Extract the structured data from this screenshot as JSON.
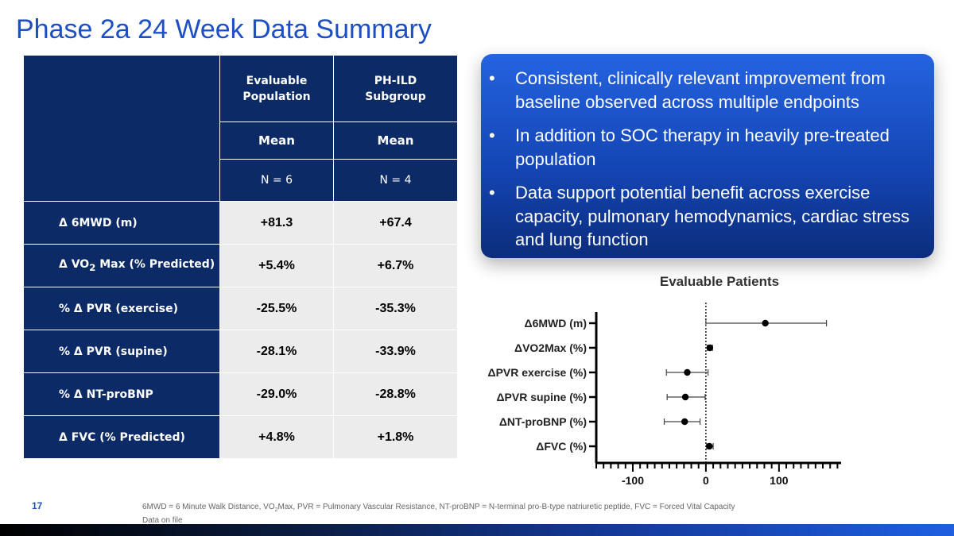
{
  "slide": {
    "title": "Phase 2a 24 Week Data Summary",
    "page_number": "17",
    "footnote_line1_a": "6MWD = 6 Minute Walk Distance, VO",
    "footnote_line1_sub": "2",
    "footnote_line1_b": "Max, PVR = Pulmonary Vascular Resistance, NT-proBNP = N-terminal pro-B-type natriuretic peptide, FVC = Forced Vital Capacity",
    "footnote_line2": "Data on file"
  },
  "table": {
    "columns": [
      {
        "line1": "Evaluable",
        "line2": "Population",
        "stat": "Mean",
        "n": "N = 6"
      },
      {
        "line1": "PH-ILD",
        "line2": "Subgroup",
        "stat": "Mean",
        "n": "N = 4"
      }
    ],
    "rows": [
      {
        "label": "Δ 6MWD (m)",
        "values": [
          "+81.3",
          "+67.4"
        ]
      },
      {
        "label_a": "Δ VO",
        "label_sub": "2",
        "label_b": " Max  (% Predicted)",
        "values": [
          "+5.4%",
          "+6.7%"
        ]
      },
      {
        "label": "% Δ PVR (exercise)",
        "values": [
          "-25.5%",
          "-35.3%"
        ]
      },
      {
        "label": "% Δ PVR (supine)",
        "values": [
          "-28.1%",
          "-33.9%"
        ]
      },
      {
        "label": "% Δ NT-proBNP",
        "values": [
          "-29.0%",
          "-28.8%"
        ]
      },
      {
        "label": "Δ FVC (% Predicted)",
        "values": [
          "+4.8%",
          "+1.8%"
        ]
      }
    ]
  },
  "callout": {
    "bullet_symbol": "•",
    "bullets": [
      "Consistent, clinically relevant improvement from baseline observed across multiple endpoints",
      "In addition to SOC therapy in heavily pre-treated population",
      "Data support potential benefit across exercise capacity, pulmonary hemodynamics, cardiac stress and lung function"
    ]
  },
  "chart_data": {
    "type": "scatter",
    "title": "Evaluable Patients",
    "categories": [
      "ΔFVC (%)",
      "ΔNT-proBNP (%)",
      "ΔPVR supine (%)",
      "ΔPVR exercise (%)",
      "ΔVO2Max (%)",
      "Δ6MWD (m)"
    ],
    "mean": [
      4.8,
      -29.0,
      -28.1,
      -25.5,
      5.4,
      81.3
    ],
    "ci_low": [
      1,
      -57,
      -53,
      -54,
      2,
      0
    ],
    "ci_high": [
      10,
      -8,
      -1,
      3,
      9,
      165
    ],
    "xlim": [
      -150,
      185
    ],
    "x_ticks": [
      -100,
      0,
      100
    ],
    "reference_line": 0,
    "marker_color": "#000000"
  }
}
